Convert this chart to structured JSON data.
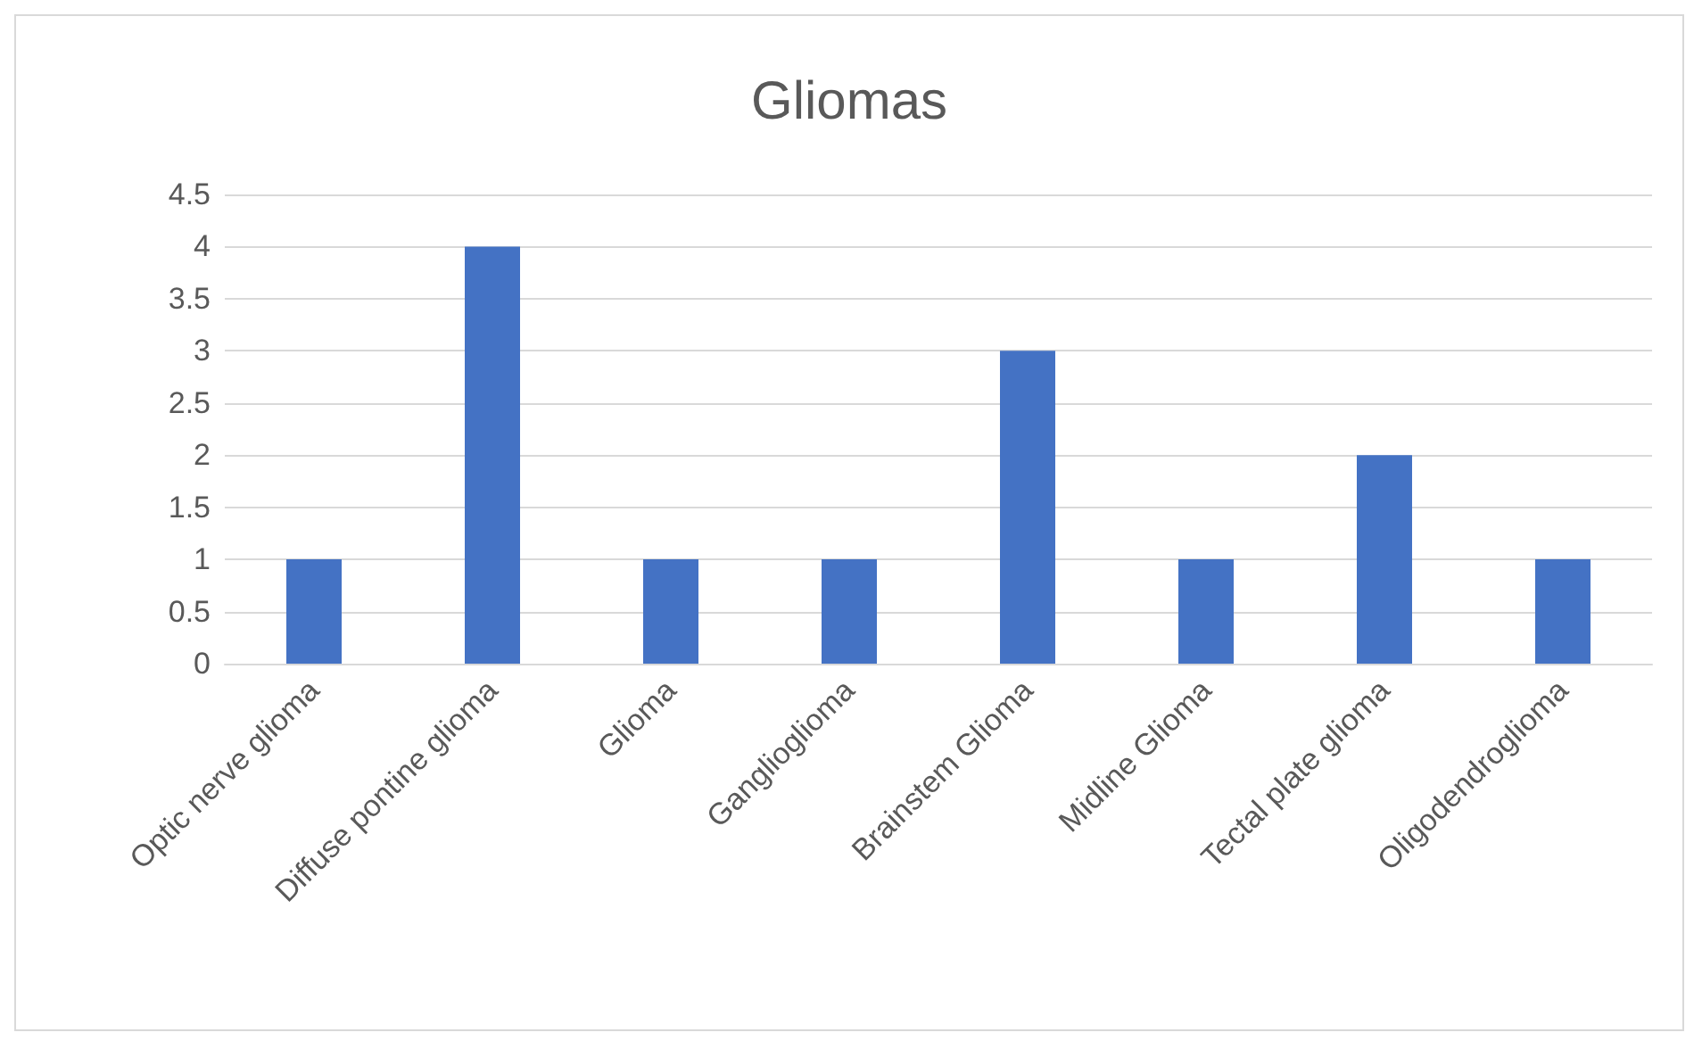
{
  "chart_data": {
    "type": "bar",
    "title": "Gliomas",
    "categories": [
      "Optic nerve glioma",
      "Diffuse pontine glioma",
      "Glioma",
      "Ganglioglioma",
      "Brainstem Glioma",
      "Midline Glioma",
      "Tectal plate glioma",
      "Oligodendroglioma"
    ],
    "values": [
      1,
      4,
      1,
      1,
      3,
      1,
      2,
      1
    ],
    "color": "#4472c4",
    "ylim": [
      0,
      4.5
    ],
    "yticks": [
      0,
      0.5,
      1,
      1.5,
      2,
      2.5,
      3,
      3.5,
      4,
      4.5
    ],
    "grid": "y"
  }
}
